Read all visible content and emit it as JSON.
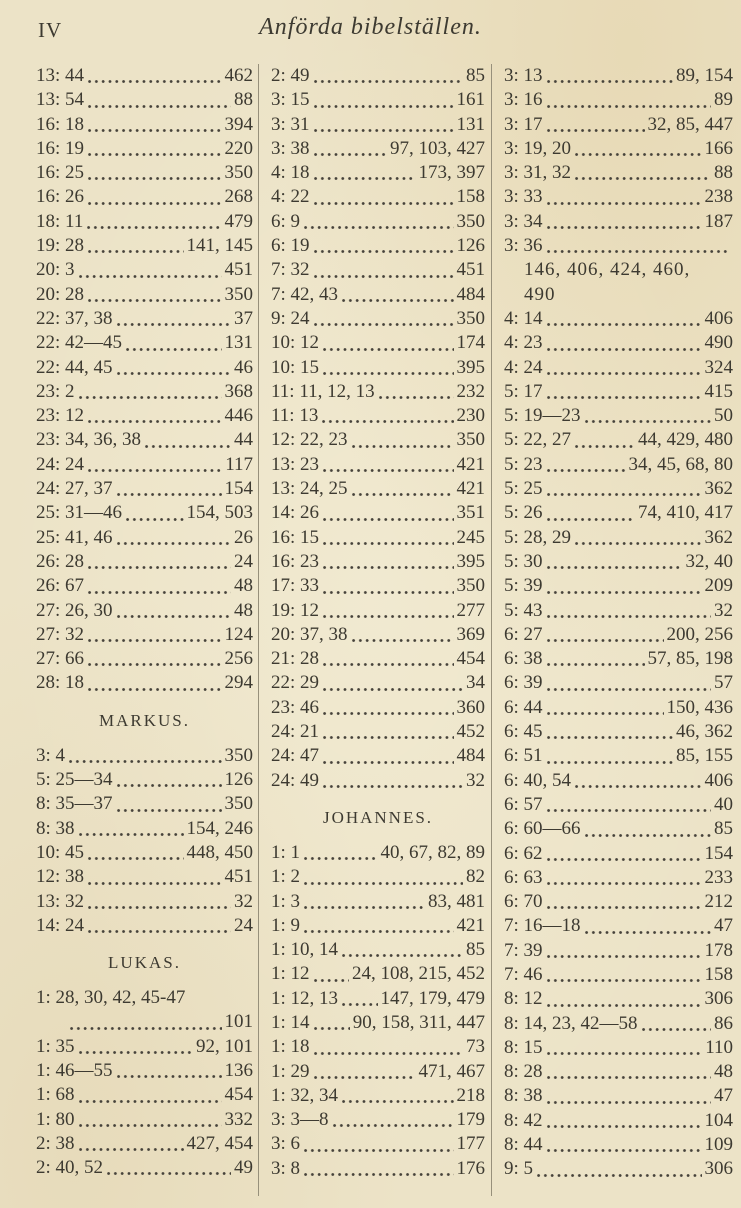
{
  "page": {
    "folio": "IV",
    "title": "Anförda bibelställen."
  },
  "colors": {
    "paper": "#ece3c7",
    "ink": "#3d3a31",
    "rule": "#97907b"
  },
  "columns": [
    {
      "rows": [
        {
          "t": "e",
          "ref": "13: 44",
          "pg": "462"
        },
        {
          "t": "e",
          "ref": "13: 54",
          "pg": "88"
        },
        {
          "t": "e",
          "ref": "16: 18",
          "pg": "394"
        },
        {
          "t": "e",
          "ref": "16: 19",
          "pg": "220"
        },
        {
          "t": "e",
          "ref": "16: 25",
          "pg": "350"
        },
        {
          "t": "e",
          "ref": "16: 26",
          "pg": "268"
        },
        {
          "t": "e",
          "ref": "18: 11",
          "pg": "479"
        },
        {
          "t": "e",
          "ref": "19: 28",
          "pg": "141, 145"
        },
        {
          "t": "e",
          "ref": "20: 3",
          "pg": "451"
        },
        {
          "t": "e",
          "ref": "20: 28",
          "pg": "350"
        },
        {
          "t": "e",
          "ref": "22: 37, 38",
          "pg": "37"
        },
        {
          "t": "e",
          "ref": "22: 42—45",
          "pg": "131"
        },
        {
          "t": "e",
          "ref": "22: 44, 45",
          "pg": "46"
        },
        {
          "t": "e",
          "ref": "23: 2",
          "pg": "368"
        },
        {
          "t": "e",
          "ref": "23: 12",
          "pg": "446"
        },
        {
          "t": "e",
          "ref": "23: 34, 36, 38",
          "pg": "44"
        },
        {
          "t": "e",
          "ref": "24: 24",
          "pg": "117"
        },
        {
          "t": "e",
          "ref": "24: 27, 37",
          "pg": "154"
        },
        {
          "t": "e",
          "ref": "25: 31—46",
          "pg": "154, 503"
        },
        {
          "t": "e",
          "ref": "25: 41, 46",
          "pg": "26"
        },
        {
          "t": "e",
          "ref": "26: 28",
          "pg": "24"
        },
        {
          "t": "e",
          "ref": "26: 67",
          "pg": "48"
        },
        {
          "t": "e",
          "ref": "27: 26, 30",
          "pg": "48"
        },
        {
          "t": "e",
          "ref": "27: 32",
          "pg": "124"
        },
        {
          "t": "e",
          "ref": "27: 66",
          "pg": "256"
        },
        {
          "t": "e",
          "ref": "28: 18",
          "pg": "294"
        },
        {
          "t": "h",
          "label": "MARKUS."
        },
        {
          "t": "e",
          "ref": "3: 4",
          "pg": "350"
        },
        {
          "t": "e",
          "ref": "5: 25—34",
          "pg": "126"
        },
        {
          "t": "e",
          "ref": "8: 35—37",
          "pg": "350"
        },
        {
          "t": "e",
          "ref": "8: 38",
          "pg": "154, 246"
        },
        {
          "t": "e",
          "ref": "10: 45",
          "pg": "448, 450"
        },
        {
          "t": "e",
          "ref": "12: 38",
          "pg": "451"
        },
        {
          "t": "e",
          "ref": "13: 32",
          "pg": "32"
        },
        {
          "t": "e",
          "ref": "14: 24",
          "pg": "24"
        },
        {
          "t": "h",
          "label": "LUKAS."
        },
        {
          "t": "w",
          "ref": "1: 28, 30, 42, 45-47"
        },
        {
          "t": "l",
          "pg": "101"
        },
        {
          "t": "e",
          "ref": "1: 35",
          "pg": "92, 101"
        },
        {
          "t": "e",
          "ref": "1: 46—55",
          "pg": "136"
        },
        {
          "t": "e",
          "ref": "1: 68",
          "pg": "454"
        },
        {
          "t": "e",
          "ref": "1: 80",
          "pg": "332"
        },
        {
          "t": "e",
          "ref": "2: 38",
          "pg": "427, 454"
        },
        {
          "t": "e",
          "ref": "2: 40, 52",
          "pg": "49"
        }
      ]
    },
    {
      "rows": [
        {
          "t": "e",
          "ref": "2: 49",
          "pg": "85"
        },
        {
          "t": "e",
          "ref": "3: 15",
          "pg": "161"
        },
        {
          "t": "e",
          "ref": "3: 31",
          "pg": "131"
        },
        {
          "t": "e",
          "ref": "3: 38",
          "pg": "97, 103, 427"
        },
        {
          "t": "e",
          "ref": "4: 18",
          "pg": "173, 397"
        },
        {
          "t": "e",
          "ref": "4: 22",
          "pg": "158"
        },
        {
          "t": "e",
          "ref": "6: 9",
          "pg": "350"
        },
        {
          "t": "e",
          "ref": "6: 19",
          "pg": "126"
        },
        {
          "t": "e",
          "ref": "7: 32",
          "pg": "451"
        },
        {
          "t": "e",
          "ref": "7: 42, 43",
          "pg": "484"
        },
        {
          "t": "e",
          "ref": "9: 24",
          "pg": "350"
        },
        {
          "t": "e",
          "ref": "10: 12",
          "pg": "174"
        },
        {
          "t": "e",
          "ref": "10: 15",
          "pg": "395"
        },
        {
          "t": "e",
          "ref": "11: 11, 12, 13",
          "pg": "232"
        },
        {
          "t": "e",
          "ref": "11: 13",
          "pg": "230"
        },
        {
          "t": "e",
          "ref": "12: 22, 23",
          "pg": "350"
        },
        {
          "t": "e",
          "ref": "13: 23",
          "pg": "421"
        },
        {
          "t": "e",
          "ref": "13: 24, 25",
          "pg": "421"
        },
        {
          "t": "e",
          "ref": "14: 26",
          "pg": "351"
        },
        {
          "t": "e",
          "ref": "16: 15",
          "pg": "245"
        },
        {
          "t": "e",
          "ref": "16: 23",
          "pg": "395"
        },
        {
          "t": "e",
          "ref": "17: 33",
          "pg": "350"
        },
        {
          "t": "e",
          "ref": "19: 12",
          "pg": "277"
        },
        {
          "t": "e",
          "ref": "20: 37, 38",
          "pg": "369"
        },
        {
          "t": "e",
          "ref": "21: 28",
          "pg": "454"
        },
        {
          "t": "e",
          "ref": "22: 29",
          "pg": "34"
        },
        {
          "t": "e",
          "ref": "23: 46",
          "pg": "360"
        },
        {
          "t": "e",
          "ref": "24: 21",
          "pg": "452"
        },
        {
          "t": "e",
          "ref": "24: 47",
          "pg": "484"
        },
        {
          "t": "e",
          "ref": "24: 49",
          "pg": "32"
        },
        {
          "t": "h",
          "label": "JOHANNES."
        },
        {
          "t": "e",
          "ref": "1: 1",
          "pg": "40, 67, 82, 89"
        },
        {
          "t": "e",
          "ref": "1: 2",
          "pg": "82"
        },
        {
          "t": "e",
          "ref": "1: 3",
          "pg": "83, 481"
        },
        {
          "t": "e",
          "ref": "1: 9",
          "pg": "421"
        },
        {
          "t": "e",
          "ref": "1: 10, 14",
          "pg": "85"
        },
        {
          "t": "e",
          "ref": "1: 12",
          "pg": "24, 108, 215, 452"
        },
        {
          "t": "e",
          "ref": "1: 12, 13",
          "pg": "147, 179, 479"
        },
        {
          "t": "e",
          "ref": "1: 14",
          "pg": "90, 158, 311, 447"
        },
        {
          "t": "e",
          "ref": "1: 18",
          "pg": "73"
        },
        {
          "t": "e",
          "ref": "1: 29",
          "pg": "471, 467"
        },
        {
          "t": "e",
          "ref": "1: 32, 34",
          "pg": "218"
        },
        {
          "t": "e",
          "ref": "3: 3—8",
          "pg": "179"
        },
        {
          "t": "e",
          "ref": "3: 6",
          "pg": "177"
        },
        {
          "t": "e",
          "ref": "3: 8",
          "pg": "176"
        }
      ]
    },
    {
      "rows": [
        {
          "t": "e",
          "ref": "3: 13",
          "pg": "89, 154"
        },
        {
          "t": "e",
          "ref": "3: 16",
          "pg": "89"
        },
        {
          "t": "e",
          "ref": "3: 17",
          "pg": "32, 85, 447"
        },
        {
          "t": "e",
          "ref": "3: 19, 20",
          "pg": "166"
        },
        {
          "t": "e",
          "ref": "3: 31, 32",
          "pg": "88"
        },
        {
          "t": "e",
          "ref": "3: 33",
          "pg": "238"
        },
        {
          "t": "e",
          "ref": "3: 34",
          "pg": "187"
        },
        {
          "t": "e",
          "ref": "3: 36",
          "pg": ""
        },
        {
          "t": "c",
          "text": "146, 406, 424, 460,"
        },
        {
          "t": "c",
          "text": "490"
        },
        {
          "t": "e",
          "ref": "4: 14",
          "pg": "406"
        },
        {
          "t": "e",
          "ref": "4: 23",
          "pg": "490"
        },
        {
          "t": "e",
          "ref": "4: 24",
          "pg": "324"
        },
        {
          "t": "e",
          "ref": "5: 17",
          "pg": "415"
        },
        {
          "t": "e",
          "ref": "5: 19—23",
          "pg": "50"
        },
        {
          "t": "e",
          "ref": "5: 22, 27",
          "pg": "44, 429, 480"
        },
        {
          "t": "e",
          "ref": "5: 23",
          "pg": "34, 45, 68, 80"
        },
        {
          "t": "e",
          "ref": "5: 25",
          "pg": "362"
        },
        {
          "t": "e",
          "ref": "5: 26",
          "pg": "74, 410, 417"
        },
        {
          "t": "e",
          "ref": "5: 28, 29",
          "pg": "362"
        },
        {
          "t": "e",
          "ref": "5: 30",
          "pg": "32, 40"
        },
        {
          "t": "e",
          "ref": "5: 39",
          "pg": "209"
        },
        {
          "t": "e",
          "ref": "5: 43",
          "pg": "32"
        },
        {
          "t": "e",
          "ref": "6: 27",
          "pg": "200, 256"
        },
        {
          "t": "e",
          "ref": "6: 38",
          "pg": "57, 85, 198"
        },
        {
          "t": "e",
          "ref": "6: 39",
          "pg": "57"
        },
        {
          "t": "e",
          "ref": "6: 44",
          "pg": "150, 436"
        },
        {
          "t": "e",
          "ref": "6: 45",
          "pg": "46, 362"
        },
        {
          "t": "e",
          "ref": "6: 51",
          "pg": "85, 155"
        },
        {
          "t": "e",
          "ref": "6: 40, 54",
          "pg": "406"
        },
        {
          "t": "e",
          "ref": "6: 57",
          "pg": "40"
        },
        {
          "t": "e",
          "ref": "6: 60—66",
          "pg": "85"
        },
        {
          "t": "e",
          "ref": "6: 62",
          "pg": "154"
        },
        {
          "t": "e",
          "ref": "6: 63",
          "pg": "233"
        },
        {
          "t": "e",
          "ref": "6: 70",
          "pg": "212"
        },
        {
          "t": "e",
          "ref": "7: 16—18",
          "pg": "47"
        },
        {
          "t": "e",
          "ref": "7: 39",
          "pg": "178"
        },
        {
          "t": "e",
          "ref": "7: 46",
          "pg": "158"
        },
        {
          "t": "e",
          "ref": "8: 12",
          "pg": "306"
        },
        {
          "t": "e",
          "ref": "8: 14, 23, 42—58",
          "pg": "86"
        },
        {
          "t": "e",
          "ref": "8: 15",
          "pg": "110"
        },
        {
          "t": "e",
          "ref": "8: 28",
          "pg": "48"
        },
        {
          "t": "e",
          "ref": "8: 38",
          "pg": "47"
        },
        {
          "t": "e",
          "ref": "8: 42",
          "pg": "104"
        },
        {
          "t": "e",
          "ref": "8: 44",
          "pg": "109"
        },
        {
          "t": "e",
          "ref": "9: 5",
          "pg": "306"
        }
      ]
    }
  ]
}
